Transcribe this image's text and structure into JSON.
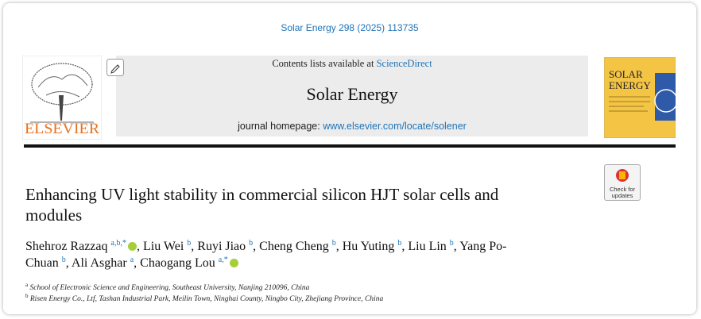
{
  "citation": "Solar Energy 298 (2025) 113735",
  "header": {
    "contents_prefix": "Contents lists available at",
    "contents_link": "ScienceDirect",
    "journal": "Solar Energy",
    "homepage_label": "journal homepage:",
    "homepage_url": "www.elsevier.com/locate/solener"
  },
  "publisher": "ELSEVIER",
  "cover": {
    "title_line1": "SOLAR",
    "title_line2": "ENERGY"
  },
  "badge": {
    "line1": "Check for",
    "line2": "updates"
  },
  "title": "Enhancing UV light stability in commercial silicon HJT solar cells and modules",
  "author_separator": ",",
  "authors": [
    {
      "name": "Shehroz Razzaq",
      "sup": "a,b,*",
      "orcid": true
    },
    {
      "name": "Liu Wei",
      "sup": "b",
      "orcid": false
    },
    {
      "name": "Ruyi Jiao",
      "sup": "b",
      "orcid": false
    },
    {
      "name": "Cheng Cheng",
      "sup": "b",
      "orcid": false
    },
    {
      "name": "Hu Yuting",
      "sup": "b",
      "orcid": false
    },
    {
      "name": "Liu Lin",
      "sup": "b",
      "orcid": false
    },
    {
      "name": "Yang Po-Chuan",
      "sup": "b",
      "orcid": false
    },
    {
      "name": "Ali Asghar",
      "sup": "a",
      "orcid": false
    },
    {
      "name": "Chaogang Lou",
      "sup": "a,*",
      "orcid": true
    }
  ],
  "affiliations": [
    {
      "label": "a",
      "text": "School of Electronic Science and Engineering, Southeast University, Nanjing 210096, China"
    },
    {
      "label": "b",
      "text": "Risen Energy Co., Ltf, Tashan Industrial Park, Meilin Town, Ninghai County, Ningbo City, Zhejiang Province, China"
    }
  ]
}
